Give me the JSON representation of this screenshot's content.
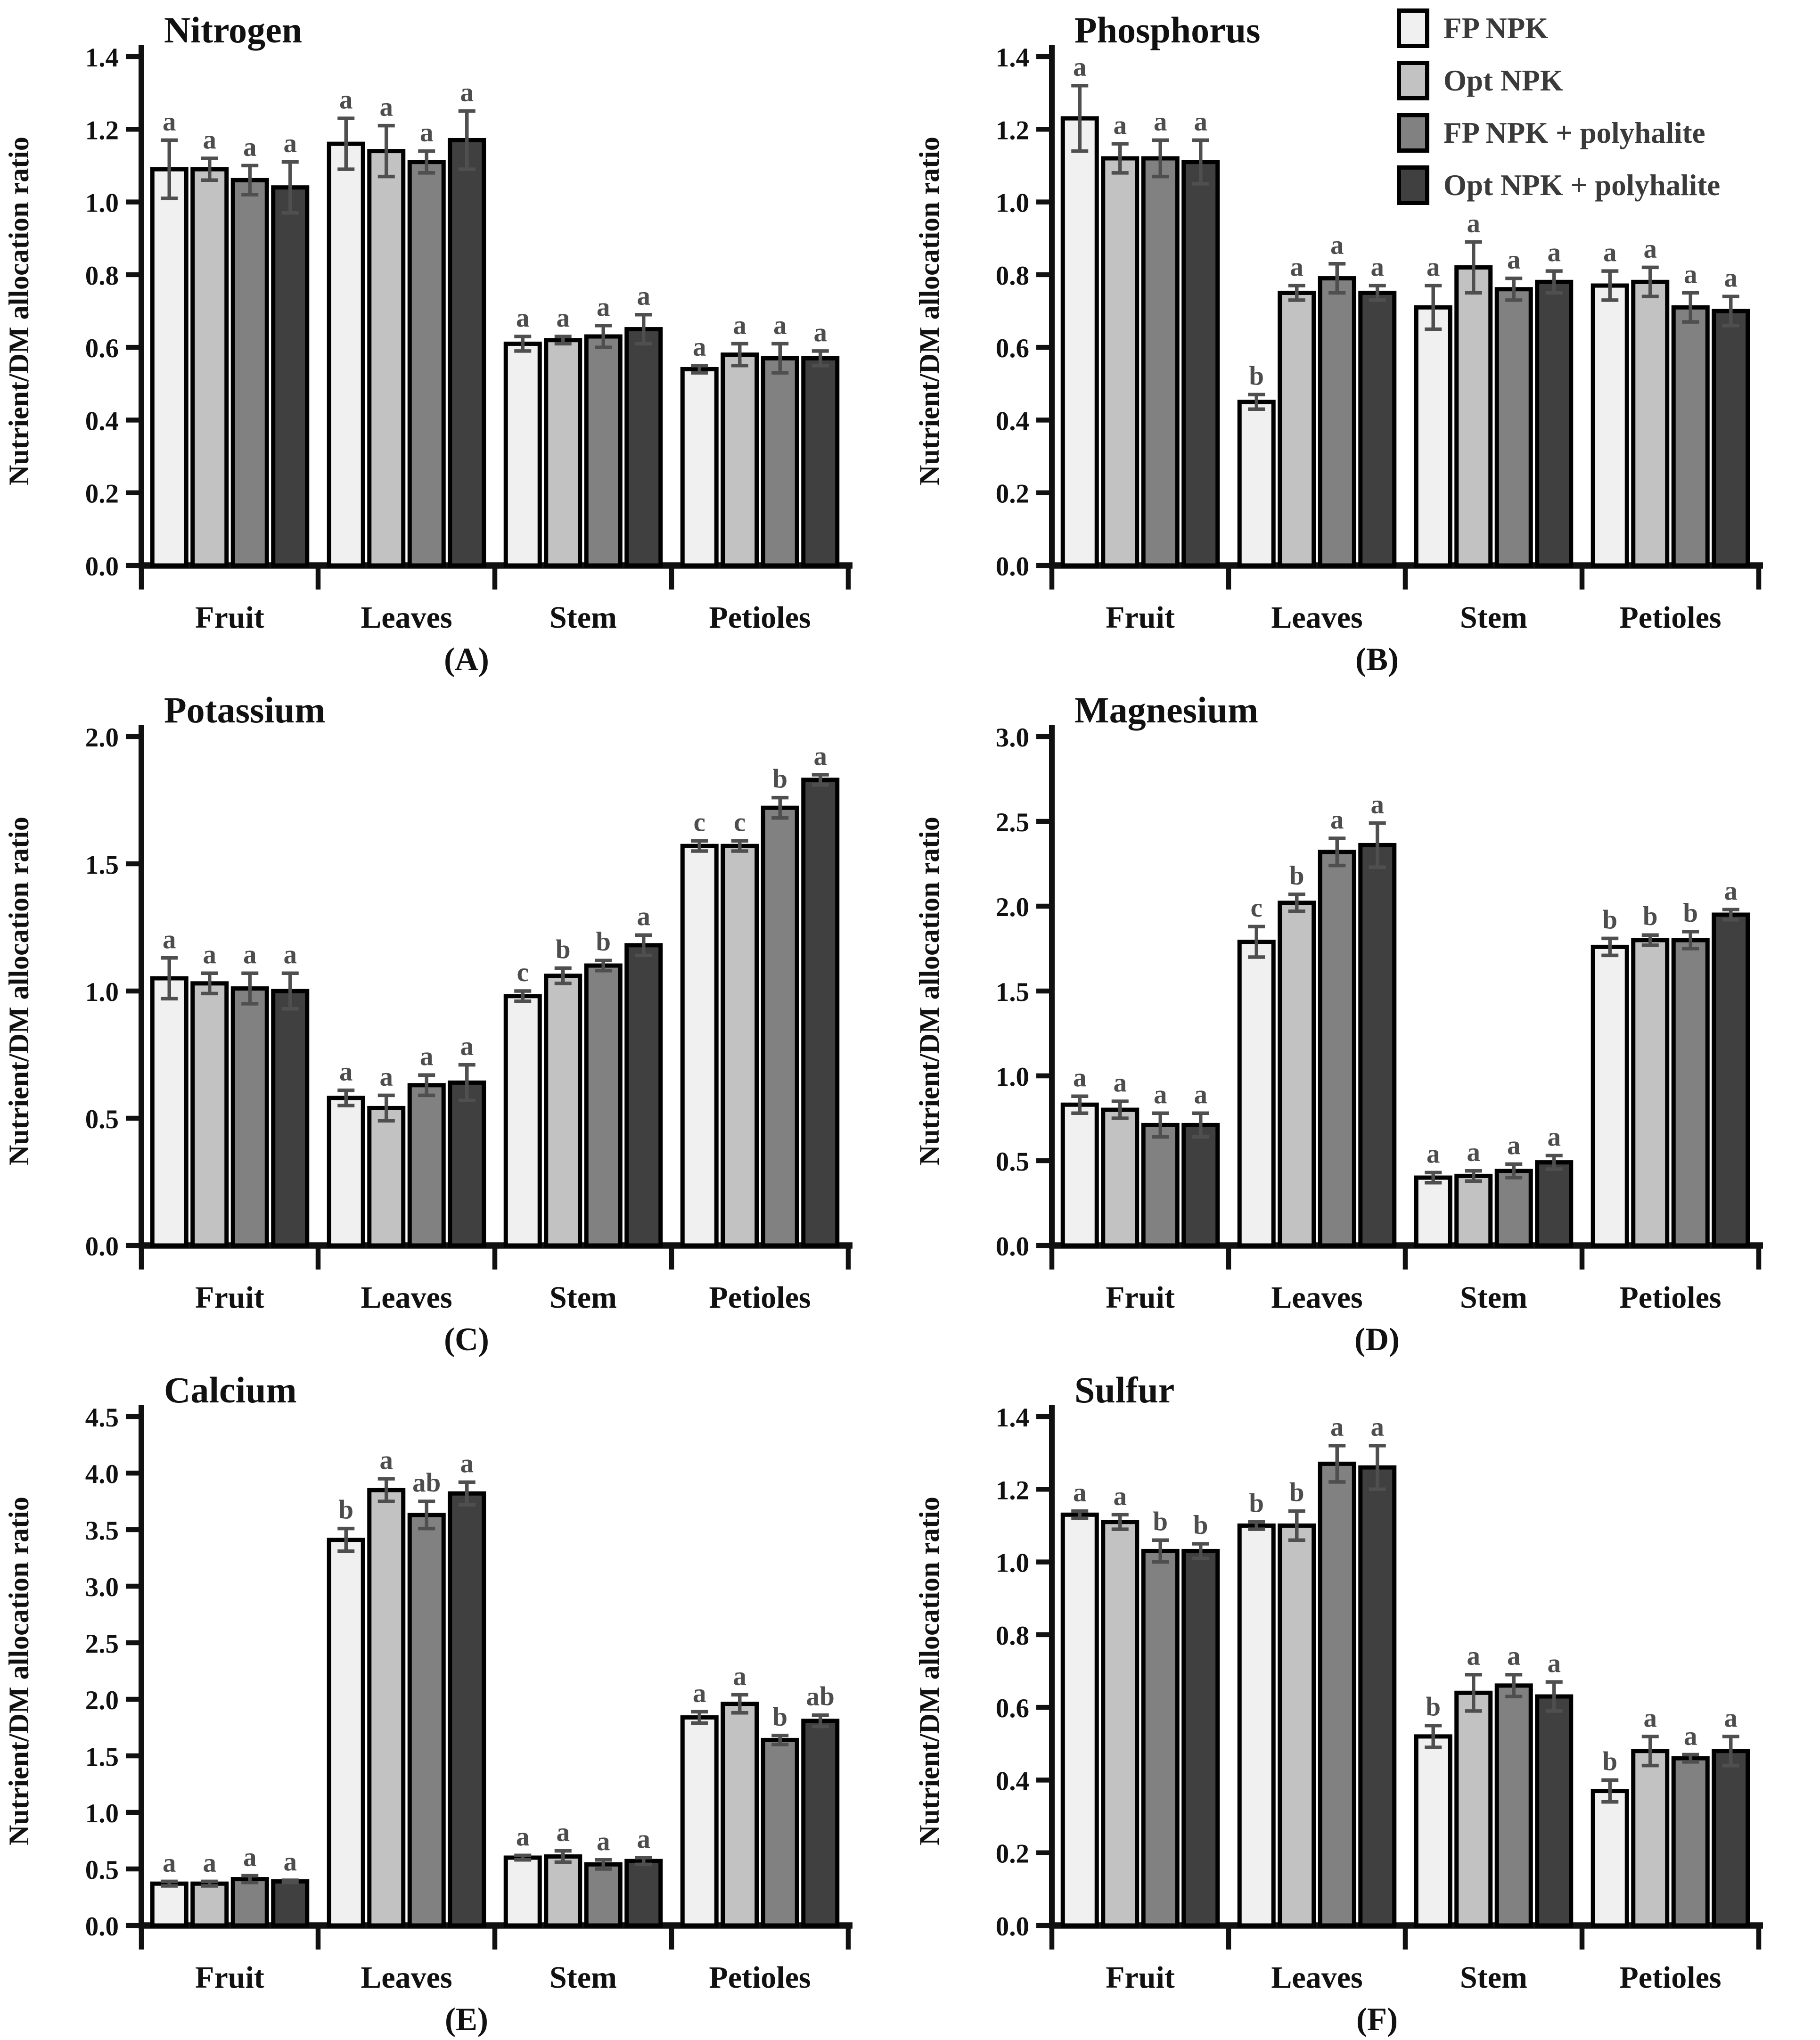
{
  "figure": {
    "ylabel": "Nutrient/DM allocation ratio",
    "axis_color": "#111111",
    "letter_color": "#4d4d4d",
    "error_color": "#4f4f4f",
    "bar_stroke": "#000000"
  },
  "legend": {
    "items": [
      {
        "label": "FP NPK",
        "color": "#f0f0f0"
      },
      {
        "label": "Opt NPK",
        "color": "#c2c2c2"
      },
      {
        "label": "FP NPK + polyhalite",
        "color": "#818181"
      },
      {
        "label": "Opt NPK + polyhalite",
        "color": "#404040"
      }
    ]
  },
  "chart_data": [
    {
      "id": "nitrogen",
      "type": "bar",
      "title": "Nitrogen",
      "panel_label": "(A)",
      "ylabel": "Nutrient/DM allocation ratio",
      "ylim": [
        0,
        1.4
      ],
      "ytick_step": 0.2,
      "categories": [
        "Fruit",
        "Leaves",
        "Stem",
        "Petioles"
      ],
      "series": [
        {
          "name": "FP NPK",
          "values": [
            1.09,
            1.16,
            0.61,
            0.54
          ]
        },
        {
          "name": "Opt NPK",
          "values": [
            1.09,
            1.14,
            0.62,
            0.58
          ]
        },
        {
          "name": "FP NPK + polyhalite",
          "values": [
            1.06,
            1.11,
            0.63,
            0.57
          ]
        },
        {
          "name": "Opt NPK + polyhalite",
          "values": [
            1.04,
            1.17,
            0.65,
            0.57
          ]
        }
      ],
      "errors": [
        [
          0.08,
          0.07,
          0.02,
          0.01
        ],
        [
          0.03,
          0.07,
          0.01,
          0.03
        ],
        [
          0.04,
          0.03,
          0.03,
          0.04
        ],
        [
          0.07,
          0.08,
          0.04,
          0.02
        ]
      ],
      "letters": [
        [
          "a",
          "a",
          "a",
          "a"
        ],
        [
          "a",
          "a",
          "a",
          "a"
        ],
        [
          "a",
          "a",
          "a",
          "a"
        ],
        [
          "a",
          "a",
          "a",
          "a"
        ]
      ]
    },
    {
      "id": "phosphorus",
      "type": "bar",
      "title": "Phosphorus",
      "panel_label": "(B)",
      "ylabel": "Nutrient/DM allocation ratio",
      "ylim": [
        0,
        1.4
      ],
      "ytick_step": 0.2,
      "categories": [
        "Fruit",
        "Leaves",
        "Stem",
        "Petioles"
      ],
      "series": [
        {
          "name": "FP NPK",
          "values": [
            1.23,
            0.45,
            0.71,
            0.77
          ]
        },
        {
          "name": "Opt NPK",
          "values": [
            1.12,
            0.75,
            0.82,
            0.78
          ]
        },
        {
          "name": "FP NPK + polyhalite",
          "values": [
            1.12,
            0.79,
            0.76,
            0.71
          ]
        },
        {
          "name": "Opt NPK + polyhalite",
          "values": [
            1.11,
            0.75,
            0.78,
            0.7
          ]
        }
      ],
      "errors": [
        [
          0.09,
          0.02,
          0.06,
          0.04
        ],
        [
          0.04,
          0.02,
          0.07,
          0.04
        ],
        [
          0.05,
          0.04,
          0.03,
          0.04
        ],
        [
          0.06,
          0.02,
          0.03,
          0.04
        ]
      ],
      "letters": [
        [
          "a",
          "b",
          "a",
          "a"
        ],
        [
          "a",
          "a",
          "a",
          "a"
        ],
        [
          "a",
          "a",
          "a",
          "a"
        ],
        [
          "a",
          "a",
          "a",
          "a"
        ]
      ]
    },
    {
      "id": "potassium",
      "type": "bar",
      "title": "Potassium",
      "panel_label": "(C)",
      "ylabel": "Nutrient/DM allocation ratio",
      "ylim": [
        0,
        2.0
      ],
      "ytick_step": 0.5,
      "categories": [
        "Fruit",
        "Leaves",
        "Stem",
        "Petioles"
      ],
      "series": [
        {
          "name": "FP NPK",
          "values": [
            1.05,
            0.58,
            0.98,
            1.57
          ]
        },
        {
          "name": "Opt NPK",
          "values": [
            1.03,
            0.54,
            1.06,
            1.57
          ]
        },
        {
          "name": "FP NPK + polyhalite",
          "values": [
            1.01,
            0.63,
            1.1,
            1.72
          ]
        },
        {
          "name": "Opt NPK + polyhalite",
          "values": [
            1.0,
            0.64,
            1.18,
            1.83
          ]
        }
      ],
      "errors": [
        [
          0.08,
          0.03,
          0.02,
          0.02
        ],
        [
          0.04,
          0.05,
          0.03,
          0.02
        ],
        [
          0.06,
          0.04,
          0.02,
          0.04
        ],
        [
          0.07,
          0.07,
          0.04,
          0.02
        ]
      ],
      "letters": [
        [
          "a",
          "a",
          "c",
          "c"
        ],
        [
          "a",
          "a",
          "b",
          "c"
        ],
        [
          "a",
          "a",
          "b",
          "b"
        ],
        [
          "a",
          "a",
          "a",
          "a"
        ]
      ]
    },
    {
      "id": "magnesium",
      "type": "bar",
      "title": "Magnesium",
      "panel_label": "(D)",
      "ylabel": "Nutrient/DM allocation ratio",
      "ylim": [
        0,
        3.0
      ],
      "ytick_step": 0.5,
      "categories": [
        "Fruit",
        "Leaves",
        "Stem",
        "Petioles"
      ],
      "series": [
        {
          "name": "FP NPK",
          "values": [
            0.83,
            1.79,
            0.4,
            1.76
          ]
        },
        {
          "name": "Opt NPK",
          "values": [
            0.8,
            2.02,
            0.41,
            1.8
          ]
        },
        {
          "name": "FP NPK + polyhalite",
          "values": [
            0.71,
            2.32,
            0.44,
            1.8
          ]
        },
        {
          "name": "Opt NPK + polyhalite",
          "values": [
            0.71,
            2.36,
            0.49,
            1.95
          ]
        }
      ],
      "errors": [
        [
          0.05,
          0.09,
          0.03,
          0.05
        ],
        [
          0.05,
          0.05,
          0.03,
          0.03
        ],
        [
          0.07,
          0.08,
          0.04,
          0.05
        ],
        [
          0.07,
          0.13,
          0.04,
          0.03
        ]
      ],
      "letters": [
        [
          "a",
          "c",
          "a",
          "b"
        ],
        [
          "a",
          "b",
          "a",
          "b"
        ],
        [
          "a",
          "a",
          "a",
          "b"
        ],
        [
          "a",
          "a",
          "a",
          "a"
        ]
      ]
    },
    {
      "id": "calcium",
      "type": "bar",
      "title": "Calcium",
      "panel_label": "(E)",
      "ylabel": "Nutrient/DM allocation ratio",
      "ylim": [
        0,
        4.5
      ],
      "ytick_step": 0.5,
      "categories": [
        "Fruit",
        "Leaves",
        "Stem",
        "Petioles"
      ],
      "series": [
        {
          "name": "FP NPK",
          "values": [
            0.37,
            3.41,
            0.6,
            1.84
          ]
        },
        {
          "name": "Opt NPK",
          "values": [
            0.37,
            3.85,
            0.61,
            1.96
          ]
        },
        {
          "name": "FP NPK + polyhalite",
          "values": [
            0.41,
            3.63,
            0.54,
            1.64
          ]
        },
        {
          "name": "Opt NPK + polyhalite",
          "values": [
            0.39,
            3.82,
            0.57,
            1.81
          ]
        }
      ],
      "errors": [
        [
          0.02,
          0.1,
          0.02,
          0.05
        ],
        [
          0.02,
          0.1,
          0.05,
          0.08
        ],
        [
          0.03,
          0.12,
          0.04,
          0.04
        ],
        [
          0.01,
          0.1,
          0.03,
          0.05
        ]
      ],
      "letters": [
        [
          "a",
          "b",
          "a",
          "a"
        ],
        [
          "a",
          "a",
          "a",
          "a"
        ],
        [
          "a",
          "ab",
          "a",
          "b"
        ],
        [
          "a",
          "a",
          "a",
          "ab"
        ]
      ]
    },
    {
      "id": "sulfur",
      "type": "bar",
      "title": "Sulfur",
      "panel_label": "(F)",
      "ylabel": "Nutrient/DM allocation ratio",
      "ylim": [
        0,
        1.4
      ],
      "ytick_step": 0.2,
      "categories": [
        "Fruit",
        "Leaves",
        "Stem",
        "Petioles"
      ],
      "series": [
        {
          "name": "FP NPK",
          "values": [
            1.13,
            1.1,
            0.52,
            0.37
          ]
        },
        {
          "name": "Opt NPK",
          "values": [
            1.11,
            1.1,
            0.64,
            0.48
          ]
        },
        {
          "name": "FP NPK + polyhalite",
          "values": [
            1.03,
            1.27,
            0.66,
            0.46
          ]
        },
        {
          "name": "Opt NPK + polyhalite",
          "values": [
            1.03,
            1.26,
            0.63,
            0.48
          ]
        }
      ],
      "errors": [
        [
          0.01,
          0.01,
          0.03,
          0.03
        ],
        [
          0.02,
          0.04,
          0.05,
          0.04
        ],
        [
          0.03,
          0.05,
          0.03,
          0.01
        ],
        [
          0.02,
          0.06,
          0.04,
          0.04
        ]
      ],
      "letters": [
        [
          "a",
          "b",
          "b",
          "b"
        ],
        [
          "a",
          "b",
          "a",
          "a"
        ],
        [
          "b",
          "a",
          "a",
          "a"
        ],
        [
          "b",
          "a",
          "a",
          "a"
        ]
      ]
    }
  ]
}
